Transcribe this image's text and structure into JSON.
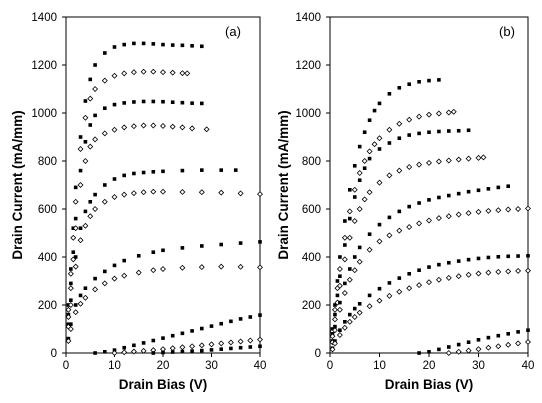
{
  "chart_data": [
    {
      "type": "scatter",
      "panel_label": "(a)",
      "xlabel": "Drain Bias (V)",
      "ylabel": "Drain Current (mA/mm)",
      "xlim": [
        0,
        40
      ],
      "ylim": [
        0,
        1400
      ],
      "xticks": [
        0,
        10,
        20,
        30,
        40
      ],
      "yticks": [
        0,
        200,
        400,
        600,
        800,
        1000,
        1200,
        1400
      ],
      "grid": false,
      "series": [
        {
          "marker": "filled-square",
          "x": [
            0.5,
            1,
            1.5,
            2,
            3,
            4,
            5,
            6,
            8,
            10,
            12,
            14,
            16,
            18,
            20,
            22,
            24,
            26,
            28
          ],
          "y": [
            200,
            350,
            520,
            690,
            900,
            1050,
            1140,
            1200,
            1250,
            1275,
            1285,
            1290,
            1290,
            1288,
            1285,
            1283,
            1282,
            1280,
            1278
          ]
        },
        {
          "marker": "open-diamond",
          "x": [
            0.5,
            1,
            1.5,
            2,
            3,
            4,
            5,
            6,
            8,
            10,
            12,
            14,
            16,
            18,
            20,
            22,
            24,
            25
          ],
          "y": [
            180,
            330,
            480,
            630,
            850,
            980,
            1060,
            1100,
            1135,
            1155,
            1165,
            1170,
            1172,
            1172,
            1170,
            1168,
            1166,
            1165
          ]
        },
        {
          "marker": "filled-square",
          "x": [
            0.5,
            1,
            1.5,
            2,
            3,
            4,
            5,
            6,
            8,
            10,
            12,
            14,
            16,
            18,
            20,
            22,
            24,
            26,
            28
          ],
          "y": [
            160,
            290,
            420,
            560,
            760,
            880,
            950,
            990,
            1020,
            1035,
            1042,
            1046,
            1048,
            1048,
            1047,
            1045,
            1043,
            1041,
            1040
          ]
        },
        {
          "marker": "open-diamond",
          "x": [
            0.5,
            1,
            1.5,
            2,
            3,
            4,
            5,
            6,
            8,
            10,
            12,
            14,
            16,
            18,
            20,
            22,
            24,
            26,
            29
          ],
          "y": [
            150,
            270,
            390,
            520,
            700,
            800,
            860,
            890,
            915,
            930,
            940,
            945,
            948,
            948,
            946,
            943,
            940,
            936,
            932
          ]
        },
        {
          "marker": "filled-square",
          "x": [
            0.5,
            1,
            2,
            3,
            4,
            5,
            6,
            8,
            10,
            12,
            14,
            16,
            18,
            20,
            24,
            28,
            32,
            35
          ],
          "y": [
            120,
            220,
            400,
            520,
            590,
            630,
            660,
            700,
            725,
            740,
            748,
            752,
            755,
            757,
            760,
            762,
            762,
            762
          ]
        },
        {
          "marker": "open-diamond",
          "x": [
            0.5,
            1,
            2,
            3,
            4,
            5,
            6,
            8,
            10,
            12,
            14,
            16,
            18,
            20,
            24,
            28,
            32,
            36,
            40
          ],
          "y": [
            110,
            200,
            360,
            470,
            530,
            570,
            600,
            630,
            650,
            660,
            666,
            670,
            672,
            672,
            671,
            670,
            668,
            665,
            662
          ]
        },
        {
          "marker": "filled-square",
          "x": [
            0.5,
            1,
            2,
            3,
            4,
            6,
            8,
            10,
            12,
            15,
            18,
            20,
            24,
            28,
            32,
            36,
            40
          ],
          "y": [
            60,
            120,
            200,
            240,
            270,
            310,
            340,
            365,
            385,
            405,
            420,
            428,
            438,
            446,
            452,
            458,
            463
          ]
        },
        {
          "marker": "open-diamond",
          "x": [
            0.5,
            1,
            2,
            3,
            4,
            6,
            8,
            10,
            12,
            15,
            18,
            20,
            24,
            28,
            32,
            36,
            40
          ],
          "y": [
            50,
            100,
            170,
            205,
            230,
            265,
            290,
            310,
            322,
            335,
            345,
            350,
            355,
            358,
            360,
            359,
            357
          ]
        },
        {
          "marker": "filled-square",
          "x": [
            6,
            8,
            10,
            12,
            14,
            16,
            18,
            20,
            22,
            24,
            26,
            28,
            30,
            32,
            34,
            36,
            38,
            40
          ],
          "y": [
            0,
            5,
            12,
            22,
            32,
            42,
            52,
            62,
            72,
            82,
            92,
            102,
            112,
            122,
            132,
            142,
            150,
            158
          ]
        },
        {
          "marker": "open-diamond",
          "x": [
            10,
            12,
            14,
            16,
            18,
            20,
            22,
            24,
            26,
            28,
            30,
            32,
            34,
            36,
            38,
            40
          ],
          "y": [
            0,
            3,
            6,
            9,
            12,
            16,
            20,
            24,
            28,
            32,
            36,
            40,
            44,
            48,
            52,
            56
          ]
        },
        {
          "marker": "filled-square",
          "x": [
            18,
            20,
            22,
            24,
            26,
            28,
            30,
            32,
            34,
            36,
            38,
            40
          ],
          "y": [
            0,
            2,
            4,
            6,
            8,
            10,
            13,
            16,
            19,
            22,
            25,
            28
          ]
        }
      ]
    },
    {
      "type": "scatter",
      "panel_label": "(b)",
      "xlabel": "Drain Bias (V)",
      "ylabel": "Drain Current (mA/mm)",
      "xlim": [
        0,
        40
      ],
      "ylim": [
        0,
        1400
      ],
      "xticks": [
        0,
        10,
        20,
        30,
        40
      ],
      "yticks": [
        0,
        200,
        400,
        600,
        800,
        1000,
        1200,
        1400
      ],
      "grid": false,
      "series": [
        {
          "marker": "filled-square",
          "x": [
            0.5,
            1,
            1.5,
            2,
            3,
            4,
            5,
            6,
            7,
            8,
            9,
            10,
            12,
            14,
            16,
            18,
            20,
            22
          ],
          "y": [
            100,
            200,
            300,
            400,
            550,
            680,
            780,
            860,
            920,
            970,
            1010,
            1040,
            1080,
            1105,
            1120,
            1130,
            1135,
            1138
          ]
        },
        {
          "marker": "open-diamond",
          "x": [
            0.5,
            1,
            1.5,
            2,
            3,
            4,
            5,
            6,
            7,
            8,
            9,
            10,
            12,
            14,
            16,
            18,
            20,
            22,
            24,
            25
          ],
          "y": [
            90,
            180,
            270,
            350,
            480,
            590,
            680,
            750,
            800,
            840,
            870,
            895,
            930,
            955,
            972,
            985,
            993,
            998,
            1002,
            1005
          ]
        },
        {
          "marker": "filled-square",
          "x": [
            0.5,
            1,
            1.5,
            2,
            3,
            4,
            5,
            6,
            7,
            8,
            10,
            12,
            14,
            16,
            18,
            20,
            22,
            24,
            26,
            28
          ],
          "y": [
            80,
            160,
            240,
            320,
            450,
            560,
            650,
            720,
            770,
            810,
            850,
            875,
            895,
            908,
            915,
            920,
            923,
            925,
            926,
            928
          ]
        },
        {
          "marker": "open-diamond",
          "x": [
            0.5,
            1,
            1.5,
            2,
            3,
            4,
            5,
            6,
            7,
            8,
            10,
            12,
            14,
            16,
            18,
            20,
            22,
            24,
            26,
            28,
            30,
            31
          ],
          "y": [
            70,
            140,
            210,
            280,
            390,
            480,
            550,
            600,
            640,
            670,
            710,
            740,
            760,
            775,
            785,
            792,
            798,
            802,
            806,
            810,
            813,
            815
          ]
        },
        {
          "marker": "filled-square",
          "x": [
            0.5,
            1,
            2,
            3,
            4,
            5,
            6,
            8,
            10,
            12,
            14,
            16,
            18,
            20,
            22,
            24,
            26,
            28,
            30,
            32,
            34,
            36
          ],
          "y": [
            50,
            110,
            210,
            290,
            350,
            400,
            440,
            495,
            535,
            565,
            590,
            610,
            625,
            638,
            648,
            656,
            664,
            672,
            678,
            684,
            690,
            695
          ]
        },
        {
          "marker": "open-diamond",
          "x": [
            0.5,
            1,
            2,
            3,
            4,
            5,
            6,
            8,
            10,
            12,
            14,
            16,
            18,
            20,
            22,
            24,
            26,
            28,
            30,
            32,
            34,
            36,
            38,
            40
          ],
          "y": [
            45,
            95,
            180,
            250,
            305,
            345,
            380,
            430,
            465,
            490,
            510,
            525,
            540,
            552,
            562,
            570,
            577,
            583,
            588,
            592,
            595,
            598,
            600,
            602
          ]
        },
        {
          "marker": "filled-square",
          "x": [
            0.5,
            1,
            2,
            3,
            4,
            5,
            6,
            8,
            10,
            12,
            14,
            16,
            18,
            20,
            22,
            24,
            26,
            28,
            30,
            32,
            34,
            36,
            38,
            40
          ],
          "y": [
            20,
            50,
            95,
            130,
            160,
            185,
            205,
            240,
            268,
            292,
            312,
            330,
            345,
            358,
            368,
            376,
            383,
            389,
            394,
            398,
            401,
            403,
            404,
            405
          ]
        },
        {
          "marker": "open-diamond",
          "x": [
            0.5,
            1,
            2,
            3,
            4,
            5,
            6,
            8,
            10,
            12,
            14,
            16,
            18,
            20,
            22,
            24,
            26,
            28,
            30,
            32,
            34,
            36,
            38,
            40
          ],
          "y": [
            15,
            40,
            75,
            105,
            130,
            150,
            168,
            195,
            218,
            238,
            255,
            270,
            283,
            295,
            305,
            313,
            320,
            326,
            331,
            335,
            338,
            340,
            342,
            343
          ]
        },
        {
          "marker": "filled-square",
          "x": [
            18,
            20,
            22,
            24,
            26,
            28,
            30,
            32,
            34,
            36,
            38,
            40
          ],
          "y": [
            0,
            5,
            15,
            25,
            35,
            45,
            55,
            64,
            72,
            80,
            88,
            95
          ]
        },
        {
          "marker": "open-diamond",
          "x": [
            24,
            26,
            28,
            30,
            32,
            34,
            36,
            38,
            40
          ],
          "y": [
            0,
            5,
            10,
            16,
            22,
            28,
            34,
            40,
            46
          ]
        }
      ]
    }
  ]
}
